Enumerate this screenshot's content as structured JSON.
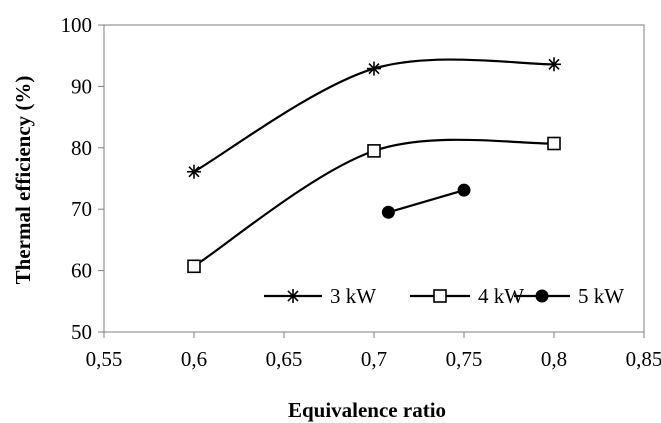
{
  "chart_data": {
    "type": "line",
    "title": "",
    "xlabel": "Equivalence ratio",
    "ylabel": "Thermal  efficiency  (%)",
    "xlim": [
      0.55,
      0.85
    ],
    "ylim": [
      50,
      100
    ],
    "x_ticks": [
      "0,55",
      "0,6",
      "0,65",
      "0,7",
      "0,75",
      "0,8",
      "0,85"
    ],
    "x_tick_values": [
      0.55,
      0.6,
      0.65,
      0.7,
      0.75,
      0.8,
      0.85
    ],
    "y_ticks": [
      "50",
      "60",
      "70",
      "80",
      "90",
      "100"
    ],
    "y_tick_values": [
      50,
      60,
      70,
      80,
      90,
      100
    ],
    "grid": false,
    "legend_position": "bottom-right",
    "series": [
      {
        "name": "3 kW",
        "marker": "asterisk",
        "smooth": true,
        "color": "#000000",
        "x": [
          0.6,
          0.7,
          0.8
        ],
        "y": [
          76.1,
          92.9,
          93.6
        ]
      },
      {
        "name": "4 kW",
        "marker": "open-square",
        "smooth": true,
        "color": "#000000",
        "x": [
          0.6,
          0.7,
          0.8
        ],
        "y": [
          60.7,
          79.5,
          80.7
        ]
      },
      {
        "name": "5 kW",
        "marker": "filled-circle",
        "smooth": false,
        "color": "#000000",
        "x": [
          0.708,
          0.75
        ],
        "y": [
          69.5,
          73.1
        ]
      }
    ]
  }
}
